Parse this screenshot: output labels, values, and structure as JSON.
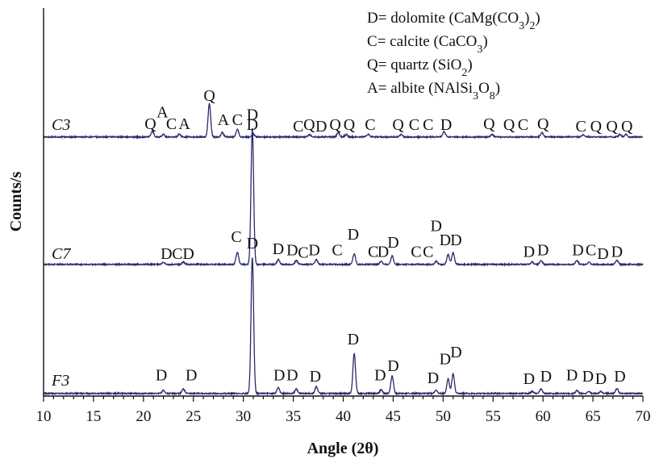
{
  "chart_data": {
    "type": "line",
    "title": "",
    "xlabel": "Angle (2θ)",
    "ylabel": "Counts/s",
    "xlim": [
      10,
      70
    ],
    "x_ticks": [
      10,
      15,
      20,
      25,
      30,
      35,
      40,
      45,
      50,
      55,
      60,
      65,
      70
    ],
    "grid": false,
    "legend_position": "top-right",
    "legend": [
      {
        "key": "D",
        "eq": "= dolomite",
        "formula": "(CaMg(CO3)2)"
      },
      {
        "key": "C",
        "eq": "= calcite",
        "formula": "(CaCO3)"
      },
      {
        "key": "Q",
        "eq": "= quartz",
        "formula": "(SiO2)"
      },
      {
        "key": "A",
        "eq": "= albite",
        "formula": "(NAlSi3O8)"
      }
    ],
    "series": [
      {
        "name": "C3",
        "baseline": 0.2,
        "peaks": [
          {
            "x": 20.9,
            "h": 1.2
          },
          {
            "x": 22.0,
            "h": 0.5
          },
          {
            "x": 23.6,
            "h": 0.6
          },
          {
            "x": 26.6,
            "h": 6.8
          },
          {
            "x": 27.9,
            "h": 0.9
          },
          {
            "x": 29.4,
            "h": 1.6
          },
          {
            "x": 31.0,
            "h": 0.6
          },
          {
            "x": 36.6,
            "h": 0.5
          },
          {
            "x": 39.5,
            "h": 0.9
          },
          {
            "x": 40.3,
            "h": 0.5
          },
          {
            "x": 42.5,
            "h": 0.6
          },
          {
            "x": 45.8,
            "h": 0.5
          },
          {
            "x": 50.1,
            "h": 1.1
          },
          {
            "x": 54.9,
            "h": 0.5
          },
          {
            "x": 59.9,
            "h": 0.9
          },
          {
            "x": 64.0,
            "h": 0.4
          },
          {
            "x": 67.7,
            "h": 0.5
          },
          {
            "x": 68.3,
            "h": 0.5
          }
        ],
        "labels": [
          {
            "t": "Q",
            "x": 20.7,
            "y": 1.5
          },
          {
            "t": "A",
            "x": 21.9,
            "y": 3.9
          },
          {
            "t": "C",
            "x": 22.8,
            "y": 1.5
          },
          {
            "t": "A",
            "x": 24.1,
            "y": 1.5
          },
          {
            "t": "Q",
            "x": 26.6,
            "y": 7.3
          },
          {
            "t": "A",
            "x": 28.0,
            "y": 2.3
          },
          {
            "t": "C",
            "x": 29.4,
            "y": 2.3
          },
          {
            "t": "D",
            "x": 30.9,
            "y": 1.3
          },
          {
            "t": "C",
            "x": 35.5,
            "y": 1.0
          },
          {
            "t": "Q",
            "x": 36.6,
            "y": 1.3
          },
          {
            "t": "D",
            "x": 37.8,
            "y": 1.0
          },
          {
            "t": "Q",
            "x": 39.2,
            "y": 1.3
          },
          {
            "t": "Q",
            "x": 40.6,
            "y": 1.3
          },
          {
            "t": "C",
            "x": 42.7,
            "y": 1.3
          },
          {
            "t": "Q",
            "x": 45.5,
            "y": 1.3
          },
          {
            "t": "C",
            "x": 47.1,
            "y": 1.3
          },
          {
            "t": "C",
            "x": 48.5,
            "y": 1.3
          },
          {
            "t": "D",
            "x": 50.3,
            "y": 1.3
          },
          {
            "t": "Q",
            "x": 54.6,
            "y": 1.5
          },
          {
            "t": "Q",
            "x": 56.6,
            "y": 1.3
          },
          {
            "t": "C",
            "x": 58.0,
            "y": 1.3
          },
          {
            "t": "Q",
            "x": 60.0,
            "y": 1.5
          },
          {
            "t": "C",
            "x": 63.8,
            "y": 1.0
          },
          {
            "t": "Q",
            "x": 65.3,
            "y": 1.0
          },
          {
            "t": "Q",
            "x": 66.9,
            "y": 1.0
          },
          {
            "t": "Q",
            "x": 68.4,
            "y": 1.0
          }
        ]
      },
      {
        "name": "C7",
        "baseline": 0.2,
        "peaks": [
          {
            "x": 22.0,
            "h": 0.4
          },
          {
            "x": 24.0,
            "h": 0.5
          },
          {
            "x": 29.4,
            "h": 2.5
          },
          {
            "x": 30.9,
            "h": 28.0
          },
          {
            "x": 33.5,
            "h": 1.0
          },
          {
            "x": 35.3,
            "h": 0.8
          },
          {
            "x": 37.3,
            "h": 1.0
          },
          {
            "x": 41.1,
            "h": 2.2
          },
          {
            "x": 43.8,
            "h": 0.6
          },
          {
            "x": 44.9,
            "h": 1.8
          },
          {
            "x": 49.3,
            "h": 0.6
          },
          {
            "x": 50.5,
            "h": 2.0
          },
          {
            "x": 51.0,
            "h": 2.4
          },
          {
            "x": 58.9,
            "h": 0.5
          },
          {
            "x": 59.8,
            "h": 0.8
          },
          {
            "x": 63.4,
            "h": 0.8
          },
          {
            "x": 64.6,
            "h": 0.4
          },
          {
            "x": 67.4,
            "h": 0.8
          }
        ],
        "labels": [
          {
            "t": "D",
            "x": 22.3,
            "y": 1.0
          },
          {
            "t": "C",
            "x": 23.4,
            "y": 1.0
          },
          {
            "t": "D",
            "x": 24.5,
            "y": 1.0
          },
          {
            "t": "C",
            "x": 29.3,
            "y": 4.5
          },
          {
            "t": "D",
            "x": 30.9,
            "y": 29.5
          },
          {
            "t": "D",
            "x": 33.5,
            "y": 2.0
          },
          {
            "t": "D",
            "x": 34.9,
            "y": 1.7
          },
          {
            "t": "C",
            "x": 36.0,
            "y": 1.2
          },
          {
            "t": "D",
            "x": 37.1,
            "y": 1.7
          },
          {
            "t": "C",
            "x": 39.4,
            "y": 1.7
          },
          {
            "t": "D",
            "x": 41.0,
            "y": 5.0
          },
          {
            "t": "C",
            "x": 43.0,
            "y": 1.4
          },
          {
            "t": "D",
            "x": 44.0,
            "y": 1.4
          },
          {
            "t": "D",
            "x": 45.0,
            "y": 3.3
          },
          {
            "t": "C",
            "x": 47.3,
            "y": 1.4
          },
          {
            "t": "C",
            "x": 48.5,
            "y": 1.4
          },
          {
            "t": "D",
            "x": 49.3,
            "y": 6.7
          },
          {
            "t": "D",
            "x": 50.2,
            "y": 3.8
          },
          {
            "t": "D",
            "x": 51.3,
            "y": 3.8
          },
          {
            "t": "D",
            "x": 58.6,
            "y": 1.4
          },
          {
            "t": "D",
            "x": 60.0,
            "y": 1.7
          },
          {
            "t": "D",
            "x": 63.5,
            "y": 1.7
          },
          {
            "t": "C",
            "x": 64.8,
            "y": 1.7
          },
          {
            "t": "D",
            "x": 66.0,
            "y": 1.0
          },
          {
            "t": "D",
            "x": 67.4,
            "y": 1.4
          }
        ]
      },
      {
        "name": "F3",
        "baseline": 0.2,
        "peaks": [
          {
            "x": 22.0,
            "h": 0.6
          },
          {
            "x": 24.0,
            "h": 0.9
          },
          {
            "x": 30.9,
            "h": 28.0
          },
          {
            "x": 33.5,
            "h": 1.2
          },
          {
            "x": 35.3,
            "h": 0.9
          },
          {
            "x": 37.3,
            "h": 1.4
          },
          {
            "x": 41.1,
            "h": 8.2
          },
          {
            "x": 43.8,
            "h": 0.8
          },
          {
            "x": 44.9,
            "h": 3.6
          },
          {
            "x": 49.3,
            "h": 0.6
          },
          {
            "x": 50.5,
            "h": 3.0
          },
          {
            "x": 51.0,
            "h": 4.0
          },
          {
            "x": 58.9,
            "h": 0.4
          },
          {
            "x": 59.8,
            "h": 0.9
          },
          {
            "x": 63.4,
            "h": 0.6
          },
          {
            "x": 64.6,
            "h": 0.4
          },
          {
            "x": 65.8,
            "h": 0.4
          },
          {
            "x": 67.4,
            "h": 1.0
          }
        ],
        "labels": [
          {
            "t": "D",
            "x": 21.8,
            "y": 2.6
          },
          {
            "t": "D",
            "x": 24.8,
            "y": 2.6
          },
          {
            "t": "D",
            "x": 30.9,
            "y": 29.6
          },
          {
            "t": "D",
            "x": 33.6,
            "y": 2.6
          },
          {
            "t": "D",
            "x": 34.9,
            "y": 2.6
          },
          {
            "t": "D",
            "x": 37.2,
            "y": 2.3
          },
          {
            "t": "D",
            "x": 41.0,
            "y": 9.9
          },
          {
            "t": "D",
            "x": 43.7,
            "y": 2.6
          },
          {
            "t": "D",
            "x": 45.0,
            "y": 4.5
          },
          {
            "t": "D",
            "x": 49.0,
            "y": 2.0
          },
          {
            "t": "D",
            "x": 50.2,
            "y": 5.9
          },
          {
            "t": "D",
            "x": 51.3,
            "y": 7.3
          },
          {
            "t": "D",
            "x": 58.6,
            "y": 1.8
          },
          {
            "t": "D",
            "x": 60.3,
            "y": 2.3
          },
          {
            "t": "D",
            "x": 62.9,
            "y": 2.6
          },
          {
            "t": "D",
            "x": 64.5,
            "y": 2.3
          },
          {
            "t": "D",
            "x": 65.8,
            "y": 1.8
          },
          {
            "t": "D",
            "x": 67.7,
            "y": 2.3
          }
        ]
      }
    ]
  }
}
